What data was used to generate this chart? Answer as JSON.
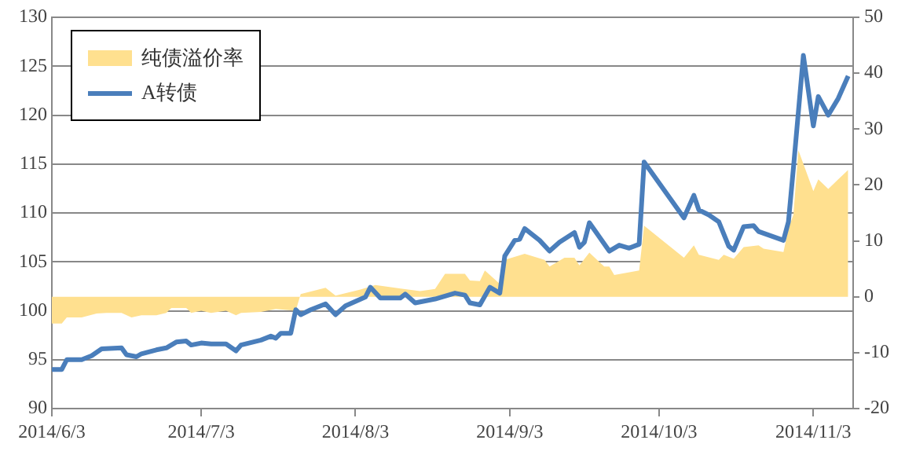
{
  "chart_data": {
    "type": "line",
    "xlim": [
      "2014-06-03",
      "2014-11-11"
    ],
    "xticks": [
      {
        "value": "2014-06-03",
        "label": "2014/6/3"
      },
      {
        "value": "2014-07-03",
        "label": "2014/7/3"
      },
      {
        "value": "2014-08-03",
        "label": "2014/8/3"
      },
      {
        "value": "2014-09-03",
        "label": "2014/9/3"
      },
      {
        "value": "2014-10-03",
        "label": "2014/10/3"
      },
      {
        "value": "2014-11-03",
        "label": "2014/11/3"
      }
    ],
    "ylim": [
      90,
      130
    ],
    "yticks": [
      90,
      95,
      100,
      105,
      110,
      115,
      120,
      125,
      130
    ],
    "y2lim": [
      -20,
      50
    ],
    "y2ticks": [
      -20,
      -10,
      0,
      10,
      20,
      30,
      40,
      50
    ],
    "grid": "y",
    "legend": "top left",
    "marker": "none",
    "series": [
      {
        "name": "纯债溢价率",
        "type": "area",
        "axis": "y2",
        "color": "#ffe08f",
        "x": [
          "2014-06-03",
          "2014-06-05",
          "2014-06-06",
          "2014-06-09",
          "2014-06-12",
          "2014-06-14",
          "2014-06-17",
          "2014-06-19",
          "2014-06-21",
          "2014-06-24",
          "2014-06-26",
          "2014-06-27",
          "2014-06-30",
          "2014-07-01",
          "2014-07-03",
          "2014-07-05",
          "2014-07-08",
          "2014-07-10",
          "2014-07-11",
          "2014-07-15",
          "2014-07-18",
          "2014-07-22",
          "2014-07-23",
          "2014-07-28",
          "2014-07-30",
          "2014-08-04",
          "2014-08-07",
          "2014-08-16",
          "2014-08-19",
          "2014-08-21",
          "2014-08-25",
          "2014-08-26",
          "2014-08-28",
          "2014-08-29",
          "2014-09-01",
          "2014-09-02",
          "2014-09-06",
          "2014-09-10",
          "2014-09-11",
          "2014-09-14",
          "2014-09-16",
          "2014-09-17",
          "2014-09-19",
          "2014-09-22",
          "2014-09-23",
          "2014-09-24",
          "2014-09-29",
          "2014-09-30",
          "2014-10-08",
          "2014-10-10",
          "2014-10-11",
          "2014-10-15",
          "2014-10-16",
          "2014-10-18",
          "2014-10-20",
          "2014-10-23",
          "2014-10-24",
          "2014-10-28",
          "2014-10-29",
          "2014-10-30",
          "2014-10-31",
          "2014-11-03",
          "2014-11-04",
          "2014-11-06",
          "2014-11-08",
          "2014-11-10"
        ],
        "values": [
          -4.8,
          -4.8,
          -3.7,
          -3.7,
          -3.0,
          -2.9,
          -2.9,
          -3.7,
          -3.3,
          -3.3,
          -2.9,
          -2.0,
          -2.0,
          -2.9,
          -2.5,
          -2.9,
          -2.5,
          -3.3,
          -2.9,
          -2.7,
          -2.2,
          -2.5,
          0.5,
          1.6,
          0.2,
          1.3,
          2.1,
          1.0,
          1.4,
          4.1,
          4.1,
          2.9,
          2.8,
          4.7,
          2.3,
          6.6,
          7.7,
          6.6,
          5.4,
          7.0,
          7.0,
          5.6,
          7.9,
          5.4,
          5.4,
          3.9,
          4.7,
          12.7,
          7.0,
          9.2,
          7.5,
          6.6,
          7.5,
          6.8,
          8.9,
          9.2,
          8.6,
          8.0,
          12.2,
          14.7,
          26.2,
          18.9,
          21.0,
          19.3,
          21.0,
          22.7
        ]
      },
      {
        "name": "A转债",
        "type": "line",
        "color": "#4a7ebb",
        "x": [
          "2014-06-03",
          "2014-06-05",
          "2014-06-06",
          "2014-06-09",
          "2014-06-11",
          "2014-06-13",
          "2014-06-17",
          "2014-06-18",
          "2014-06-20",
          "2014-06-21",
          "2014-06-24",
          "2014-06-26",
          "2014-06-28",
          "2014-06-30",
          "2014-07-01",
          "2014-07-03",
          "2014-07-05",
          "2014-07-08",
          "2014-07-10",
          "2014-07-11",
          "2014-07-15",
          "2014-07-17",
          "2014-07-18",
          "2014-07-19",
          "2014-07-21",
          "2014-07-22",
          "2014-07-23",
          "2014-07-25",
          "2014-07-28",
          "2014-07-30",
          "2014-08-01",
          "2014-08-05",
          "2014-08-06",
          "2014-08-08",
          "2014-08-12",
          "2014-08-13",
          "2014-08-15",
          "2014-08-19",
          "2014-08-23",
          "2014-08-25",
          "2014-08-26",
          "2014-08-28",
          "2014-08-30",
          "2014-09-01",
          "2014-09-02",
          "2014-09-04",
          "2014-09-05",
          "2014-09-06",
          "2014-09-09",
          "2014-09-11",
          "2014-09-13",
          "2014-09-16",
          "2014-09-17",
          "2014-09-18",
          "2014-09-19",
          "2014-09-23",
          "2014-09-25",
          "2014-09-27",
          "2014-09-29",
          "2014-09-30",
          "2014-10-08",
          "2014-10-10",
          "2014-10-11",
          "2014-10-13",
          "2014-10-15",
          "2014-10-17",
          "2014-10-18",
          "2014-10-20",
          "2014-10-22",
          "2014-10-23",
          "2014-10-28",
          "2014-10-29",
          "2014-10-30",
          "2014-11-01",
          "2014-11-03",
          "2014-11-04",
          "2014-11-06",
          "2014-11-08",
          "2014-11-10"
        ],
        "values": [
          94.0,
          94.0,
          95.0,
          95.0,
          95.4,
          96.1,
          96.2,
          95.5,
          95.3,
          95.6,
          96.0,
          96.2,
          96.8,
          96.9,
          96.5,
          96.7,
          96.6,
          96.6,
          95.9,
          96.5,
          97.0,
          97.4,
          97.2,
          97.7,
          97.7,
          100.1,
          99.6,
          100.1,
          100.7,
          99.6,
          100.5,
          101.4,
          102.4,
          101.3,
          101.3,
          101.7,
          100.8,
          101.2,
          101.8,
          101.6,
          100.8,
          100.6,
          102.4,
          101.8,
          105.6,
          107.2,
          107.3,
          108.4,
          107.2,
          106.1,
          107.0,
          108.0,
          106.5,
          107.0,
          109.0,
          106.1,
          106.7,
          106.4,
          106.8,
          115.2,
          109.5,
          111.8,
          110.3,
          109.8,
          109.1,
          106.6,
          106.2,
          108.6,
          108.7,
          108.1,
          107.2,
          109.1,
          114.6,
          126.1,
          118.9,
          121.9,
          120.0,
          121.7,
          124.0
        ]
      }
    ]
  }
}
